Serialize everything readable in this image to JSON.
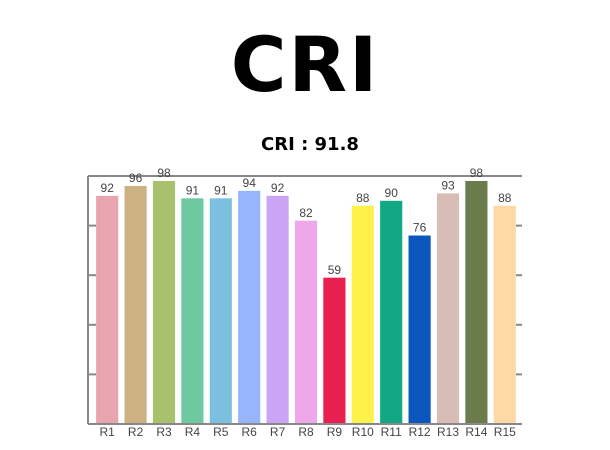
{
  "chart_data": {
    "type": "bar",
    "title": "CRI",
    "subtitle": "CRI : 91.8",
    "categories": [
      "R1",
      "R2",
      "R3",
      "R4",
      "R5",
      "R6",
      "R7",
      "R8",
      "R9",
      "R10",
      "R11",
      "R12",
      "R13",
      "R14",
      "R15"
    ],
    "values": [
      92,
      96,
      98,
      91,
      91,
      94,
      92,
      82,
      59,
      88,
      90,
      76,
      93,
      98,
      88
    ],
    "colors": [
      "#e8a5ad",
      "#cdb083",
      "#a9c16c",
      "#6ec9a0",
      "#7cc0e0",
      "#97b5fb",
      "#cba4f5",
      "#eea8ea",
      "#e7204f",
      "#fdf249",
      "#12a885",
      "#0a56bd",
      "#d9bcb5",
      "#6a7b4c",
      "#fdd9a5"
    ],
    "ylim": [
      0,
      100
    ],
    "yticks": [
      0,
      20,
      40,
      60,
      80,
      100
    ]
  }
}
